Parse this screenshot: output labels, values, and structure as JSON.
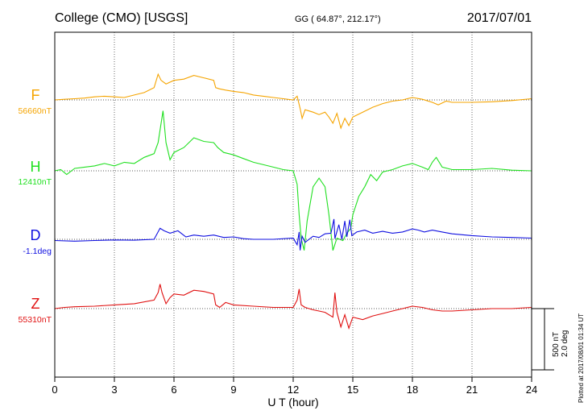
{
  "chart_data": {
    "type": "line",
    "title": "College (CMO)  [USGS]",
    "subtitle": "GG ( 64.87°, 212.17°)",
    "date": "2017/07/01",
    "xlabel": "U T (hour)",
    "xlim": [
      0,
      24
    ],
    "xticks": [
      "0",
      "3",
      "6",
      "9",
      "12",
      "15",
      "18",
      "21",
      "24"
    ],
    "grid": true,
    "scale_bar": {
      "line1": "500 nT",
      "line2": "2.0 deg",
      "nT": 500
    },
    "footer": "Plotted at 2017/08/01 01:34 UT",
    "series": [
      {
        "name": "F",
        "baseline_label": "56660nT",
        "baseline": 56660,
        "unit": "nT",
        "color": "#f5a400",
        "points": [
          [
            0,
            56660
          ],
          [
            0.5,
            56665
          ],
          [
            1,
            56670
          ],
          [
            1.5,
            56675
          ],
          [
            2,
            56685
          ],
          [
            2.5,
            56690
          ],
          [
            3,
            56685
          ],
          [
            3.5,
            56680
          ],
          [
            4,
            56700
          ],
          [
            4.5,
            56720
          ],
          [
            5,
            56760
          ],
          [
            5.2,
            56870
          ],
          [
            5.35,
            56820
          ],
          [
            5.6,
            56790
          ],
          [
            6,
            56820
          ],
          [
            6.5,
            56830
          ],
          [
            7,
            56860
          ],
          [
            7.5,
            56840
          ],
          [
            8,
            56820
          ],
          [
            8.1,
            56760
          ],
          [
            8.3,
            56750
          ],
          [
            8.6,
            56740
          ],
          [
            9,
            56730
          ],
          [
            9.5,
            56720
          ],
          [
            10,
            56700
          ],
          [
            10.5,
            56690
          ],
          [
            11,
            56680
          ],
          [
            11.5,
            56670
          ],
          [
            12,
            56660
          ],
          [
            12.2,
            56690
          ],
          [
            12.35,
            56590
          ],
          [
            12.45,
            56510
          ],
          [
            12.6,
            56580
          ],
          [
            13,
            56560
          ],
          [
            13.3,
            56540
          ],
          [
            13.6,
            56560
          ],
          [
            13.8,
            56520
          ],
          [
            14,
            56470
          ],
          [
            14.2,
            56550
          ],
          [
            14.4,
            56430
          ],
          [
            14.6,
            56510
          ],
          [
            14.8,
            56450
          ],
          [
            15,
            56520
          ],
          [
            15.5,
            56560
          ],
          [
            16,
            56600
          ],
          [
            16.5,
            56630
          ],
          [
            17,
            56650
          ],
          [
            17.5,
            56660
          ],
          [
            18,
            56680
          ],
          [
            18.5,
            56665
          ],
          [
            19,
            56640
          ],
          [
            19.3,
            56620
          ],
          [
            19.7,
            56650
          ],
          [
            20,
            56640
          ],
          [
            21,
            56640
          ],
          [
            22,
            56645
          ],
          [
            23,
            56655
          ],
          [
            24,
            56670
          ]
        ]
      },
      {
        "name": "H",
        "baseline_label": "12410nT",
        "baseline": 12410,
        "unit": "nT",
        "color": "#20e020",
        "points": [
          [
            0,
            12410
          ],
          [
            0.3,
            12420
          ],
          [
            0.6,
            12380
          ],
          [
            1,
            12430
          ],
          [
            1.5,
            12440
          ],
          [
            2,
            12450
          ],
          [
            2.5,
            12470
          ],
          [
            3,
            12450
          ],
          [
            3.5,
            12480
          ],
          [
            4,
            12470
          ],
          [
            4.5,
            12520
          ],
          [
            5,
            12550
          ],
          [
            5.2,
            12640
          ],
          [
            5.45,
            12900
          ],
          [
            5.6,
            12640
          ],
          [
            5.8,
            12500
          ],
          [
            6,
            12560
          ],
          [
            6.5,
            12600
          ],
          [
            7,
            12680
          ],
          [
            7.5,
            12650
          ],
          [
            8,
            12640
          ],
          [
            8.2,
            12600
          ],
          [
            8.5,
            12560
          ],
          [
            9,
            12540
          ],
          [
            9.5,
            12510
          ],
          [
            10,
            12480
          ],
          [
            10.5,
            12460
          ],
          [
            11,
            12440
          ],
          [
            11.5,
            12420
          ],
          [
            12,
            12410
          ],
          [
            12.2,
            12300
          ],
          [
            12.3,
            12050
          ],
          [
            12.4,
            11860
          ],
          [
            12.55,
            11760
          ],
          [
            12.7,
            12000
          ],
          [
            13,
            12280
          ],
          [
            13.3,
            12350
          ],
          [
            13.6,
            12280
          ],
          [
            13.8,
            12050
          ],
          [
            14,
            11760
          ],
          [
            14.2,
            11860
          ],
          [
            14.5,
            11840
          ],
          [
            14.7,
            11900
          ],
          [
            14.9,
            11940
          ],
          [
            15,
            12050
          ],
          [
            15.3,
            12200
          ],
          [
            15.6,
            12280
          ],
          [
            15.9,
            12380
          ],
          [
            16.2,
            12330
          ],
          [
            16.5,
            12400
          ],
          [
            17,
            12420
          ],
          [
            17.5,
            12450
          ],
          [
            18,
            12470
          ],
          [
            18.5,
            12440
          ],
          [
            18.8,
            12420
          ],
          [
            19,
            12480
          ],
          [
            19.2,
            12520
          ],
          [
            19.5,
            12440
          ],
          [
            20,
            12420
          ],
          [
            21,
            12420
          ],
          [
            22,
            12430
          ],
          [
            23,
            12415
          ],
          [
            24,
            12410
          ]
        ]
      },
      {
        "name": "D",
        "baseline_label": "-1.1deg",
        "baseline": -1.1,
        "unit": "deg",
        "color": "#1010e0",
        "points": [
          [
            0,
            -1.14
          ],
          [
            1,
            -1.16
          ],
          [
            2,
            -1.14
          ],
          [
            3,
            -1.12
          ],
          [
            4,
            -1.13
          ],
          [
            5,
            -1.1
          ],
          [
            5.3,
            -0.74
          ],
          [
            5.5,
            -0.82
          ],
          [
            5.8,
            -0.9
          ],
          [
            6.2,
            -0.82
          ],
          [
            6.6,
            -1.02
          ],
          [
            7,
            -0.96
          ],
          [
            7.5,
            -1.0
          ],
          [
            8,
            -0.96
          ],
          [
            8.5,
            -1.04
          ],
          [
            9,
            -1.02
          ],
          [
            9.5,
            -1.08
          ],
          [
            10,
            -1.1
          ],
          [
            11,
            -1.1
          ],
          [
            12,
            -1.06
          ],
          [
            12.2,
            -1.28
          ],
          [
            12.3,
            -0.86
          ],
          [
            12.35,
            -1.46
          ],
          [
            12.45,
            -1.0
          ],
          [
            12.6,
            -1.2
          ],
          [
            13,
            -1.0
          ],
          [
            13.3,
            -1.04
          ],
          [
            13.6,
            -0.92
          ],
          [
            13.9,
            -0.9
          ],
          [
            14.05,
            -0.44
          ],
          [
            14.1,
            -1.08
          ],
          [
            14.3,
            -0.62
          ],
          [
            14.45,
            -1.1
          ],
          [
            14.6,
            -0.5
          ],
          [
            14.7,
            -1.02
          ],
          [
            14.85,
            -0.46
          ],
          [
            14.95,
            -0.98
          ],
          [
            15.2,
            -0.86
          ],
          [
            15.6,
            -0.8
          ],
          [
            16,
            -0.9
          ],
          [
            16.5,
            -0.84
          ],
          [
            17,
            -0.9
          ],
          [
            17.5,
            -0.86
          ],
          [
            18,
            -0.76
          ],
          [
            18.3,
            -0.8
          ],
          [
            18.6,
            -0.86
          ],
          [
            19,
            -0.8
          ],
          [
            19.5,
            -0.86
          ],
          [
            20,
            -0.92
          ],
          [
            21,
            -0.98
          ],
          [
            22,
            -1.02
          ],
          [
            23,
            -1.04
          ],
          [
            24,
            -1.06
          ]
        ]
      },
      {
        "name": "Z",
        "baseline_label": "55310nT",
        "baseline": 55310,
        "unit": "nT",
        "color": "#e01010",
        "points": [
          [
            0,
            55310
          ],
          [
            0.5,
            55320
          ],
          [
            1,
            55325
          ],
          [
            2,
            55330
          ],
          [
            3,
            55340
          ],
          [
            4,
            55350
          ],
          [
            5,
            55380
          ],
          [
            5.2,
            55440
          ],
          [
            5.3,
            55510
          ],
          [
            5.4,
            55440
          ],
          [
            5.6,
            55350
          ],
          [
            5.8,
            55400
          ],
          [
            6,
            55430
          ],
          [
            6.5,
            55420
          ],
          [
            7,
            55460
          ],
          [
            7.5,
            55450
          ],
          [
            8,
            55430
          ],
          [
            8.1,
            55340
          ],
          [
            8.3,
            55320
          ],
          [
            8.6,
            55360
          ],
          [
            9,
            55340
          ],
          [
            10,
            55330
          ],
          [
            11,
            55320
          ],
          [
            12,
            55320
          ],
          [
            12.2,
            55380
          ],
          [
            12.3,
            55470
          ],
          [
            12.4,
            55340
          ],
          [
            12.6,
            55320
          ],
          [
            13,
            55300
          ],
          [
            13.3,
            55290
          ],
          [
            13.6,
            55280
          ],
          [
            14,
            55240
          ],
          [
            14.1,
            55440
          ],
          [
            14.2,
            55280
          ],
          [
            14.4,
            55160
          ],
          [
            14.6,
            55260
          ],
          [
            14.8,
            55150
          ],
          [
            15,
            55240
          ],
          [
            15.5,
            55220
          ],
          [
            16,
            55250
          ],
          [
            16.5,
            55270
          ],
          [
            17,
            55290
          ],
          [
            17.5,
            55310
          ],
          [
            18,
            55330
          ],
          [
            18.5,
            55320
          ],
          [
            19,
            55300
          ],
          [
            19.5,
            55290
          ],
          [
            20,
            55290
          ],
          [
            21,
            55300
          ],
          [
            22,
            55310
          ],
          [
            23,
            55310
          ],
          [
            24,
            55320
          ]
        ]
      }
    ]
  }
}
